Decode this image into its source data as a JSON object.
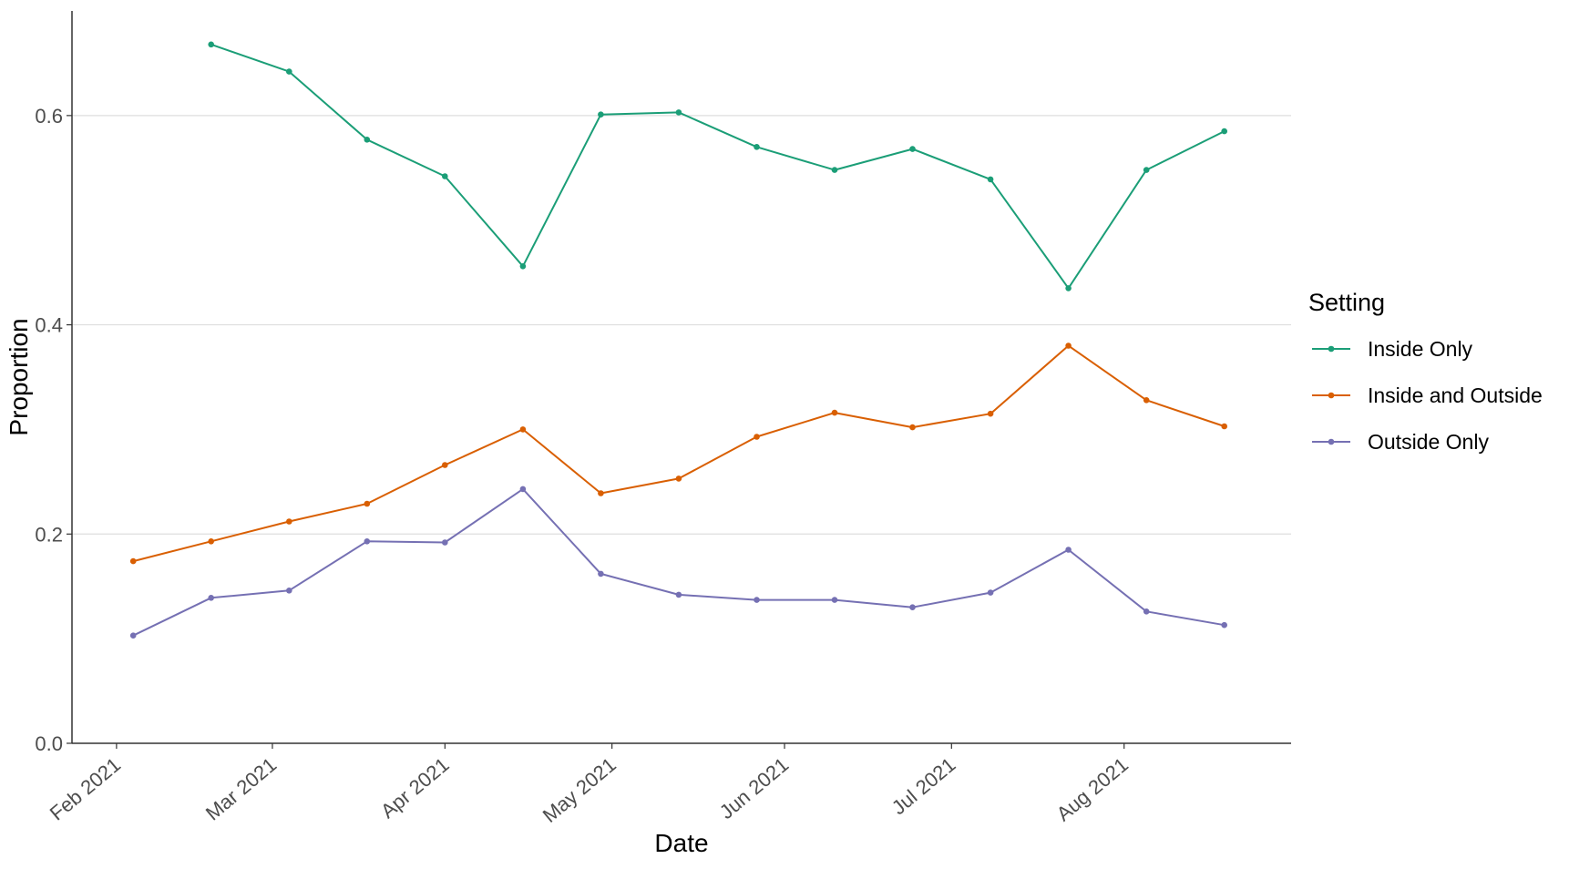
{
  "chart_data": {
    "type": "line",
    "title": "",
    "xlabel": "Date",
    "ylabel": "Proportion",
    "x_tick_labels": [
      "Feb 2021",
      "Mar 2021",
      "Apr 2021",
      "May 2021",
      "Jun 2021",
      "Jul 2021",
      "Aug 2021"
    ],
    "x_tick_dates": [
      "2021-02-01",
      "2021-03-01",
      "2021-04-01",
      "2021-05-01",
      "2021-06-01",
      "2021-07-01",
      "2021-08-01"
    ],
    "y_tick_labels": [
      "0.0",
      "0.2",
      "0.4",
      "0.6"
    ],
    "y_ticks": [
      0.0,
      0.2,
      0.4,
      0.6
    ],
    "xlim": [
      "2021-01-24",
      "2021-08-31"
    ],
    "ylim": [
      0,
      0.7
    ],
    "grid": "horizontal major",
    "legend": {
      "title": "Setting",
      "position": "right"
    },
    "series": [
      {
        "name": "Inside Only",
        "color": "#1b9e77",
        "x": [
          "2021-02-18",
          "2021-03-04",
          "2021-03-18",
          "2021-04-01",
          "2021-04-15",
          "2021-04-29",
          "2021-05-13",
          "2021-05-27",
          "2021-06-10",
          "2021-06-24",
          "2021-07-08",
          "2021-07-22",
          "2021-08-05",
          "2021-08-19"
        ],
        "y": [
          0.668,
          0.642,
          0.577,
          0.542,
          0.456,
          0.601,
          0.603,
          0.57,
          0.548,
          0.568,
          0.539,
          0.435,
          0.548,
          0.585
        ]
      },
      {
        "name": "Inside and Outside",
        "color": "#d95f02",
        "x": [
          "2021-02-04",
          "2021-02-18",
          "2021-03-04",
          "2021-03-18",
          "2021-04-01",
          "2021-04-15",
          "2021-04-29",
          "2021-05-13",
          "2021-05-27",
          "2021-06-10",
          "2021-06-24",
          "2021-07-08",
          "2021-07-22",
          "2021-08-05",
          "2021-08-19"
        ],
        "y": [
          0.174,
          0.193,
          0.212,
          0.229,
          0.266,
          0.3,
          0.239,
          0.253,
          0.293,
          0.316,
          0.302,
          0.315,
          0.38,
          0.328,
          0.303
        ]
      },
      {
        "name": "Outside Only",
        "color": "#7570b3",
        "x": [
          "2021-02-04",
          "2021-02-18",
          "2021-03-04",
          "2021-03-18",
          "2021-04-01",
          "2021-04-15",
          "2021-04-29",
          "2021-05-13",
          "2021-05-27",
          "2021-06-10",
          "2021-06-24",
          "2021-07-08",
          "2021-07-22",
          "2021-08-05",
          "2021-08-19"
        ],
        "y": [
          0.103,
          0.139,
          0.146,
          0.193,
          0.192,
          0.243,
          0.162,
          0.142,
          0.137,
          0.137,
          0.13,
          0.144,
          0.185,
          0.126,
          0.113
        ]
      }
    ]
  }
}
